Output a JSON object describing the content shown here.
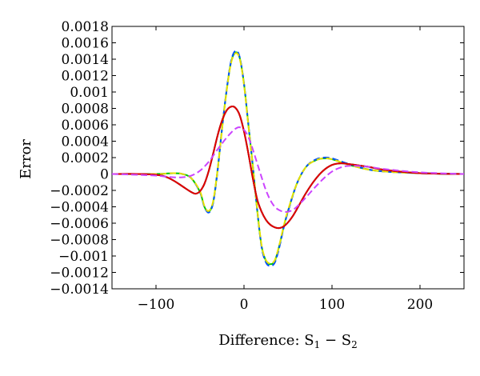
{
  "chart_data": {
    "type": "line",
    "xlabel": "Difference: S",
    "xlabel_sub1": "1",
    "xlabel_minus": " − S",
    "xlabel_sub2": "2",
    "ylabel": "Error",
    "xlim": [
      -150,
      250
    ],
    "ylim": [
      -0.0014,
      0.0018
    ],
    "x_ticks": [
      -100,
      0,
      100,
      200
    ],
    "x_tick_labels": [
      "−100",
      "0",
      "100",
      "200"
    ],
    "y_ticks": [
      -0.0014,
      -0.0012,
      -0.001,
      -0.0008,
      -0.0006,
      -0.0004,
      -0.0002,
      0,
      0.0002,
      0.0004,
      0.0006,
      0.0008,
      0.001,
      0.0012,
      0.0014,
      0.0016,
      0.0018
    ],
    "y_tick_labels": [
      "−0.0014",
      "−0.0012",
      "−0.001",
      "−0.0008",
      "−0.0006",
      "−0.0004",
      "−0.0002",
      "0",
      "0.0002",
      "0.0004",
      "0.0006",
      "0.0008",
      "0.001",
      "0.0012",
      "0.0014",
      "0.0016",
      "0.0018"
    ],
    "grid": false,
    "series": [
      {
        "color": "#00c800",
        "dash": "solid",
        "x": [
          -150,
          -100,
          -80,
          -70,
          -60,
          -50,
          -45,
          -40,
          -35,
          -30,
          -25,
          -20,
          -15,
          -10,
          -5,
          0,
          5,
          10,
          15,
          20,
          25,
          30,
          35,
          40,
          45,
          50,
          60,
          70,
          80,
          90,
          100,
          120,
          150,
          200,
          250
        ],
        "y": [
          0,
          0,
          1e-05,
          0,
          -5e-05,
          -0.00022,
          -0.0004,
          -0.00046,
          -0.00034,
          5e-05,
          0.00055,
          0.001,
          0.00135,
          0.00148,
          0.00142,
          0.0011,
          0.0006,
          0.0001,
          -0.00044,
          -0.00088,
          -0.00106,
          -0.0011,
          -0.00106,
          -0.00088,
          -0.00065,
          -0.00045,
          -0.00012,
          8e-05,
          0.00016,
          0.00019,
          0.00018,
          0.00011,
          4e-05,
          1e-05,
          0
        ]
      },
      {
        "color": "#0050ff",
        "dash": "dashed",
        "x": [
          -150,
          -100,
          -80,
          -70,
          -60,
          -50,
          -45,
          -40,
          -35,
          -30,
          -25,
          -20,
          -15,
          -10,
          -5,
          0,
          5,
          10,
          15,
          20,
          25,
          30,
          35,
          40,
          45,
          50,
          60,
          70,
          80,
          90,
          100,
          120,
          150,
          200,
          250
        ],
        "y": [
          0,
          0,
          1e-05,
          0,
          -5e-05,
          -0.00022,
          -0.0004,
          -0.00047,
          -0.00035,
          4e-05,
          0.00055,
          0.001,
          0.00136,
          0.0015,
          0.00143,
          0.0011,
          0.0006,
          0.0001,
          -0.00044,
          -0.00089,
          -0.00108,
          -0.00112,
          -0.00108,
          -0.0009,
          -0.00066,
          -0.00046,
          -0.00012,
          8e-05,
          0.00017,
          0.0002,
          0.00019,
          0.00012,
          4e-05,
          1e-05,
          0
        ]
      },
      {
        "color": "#e8e000",
        "dash": "dashed",
        "x": [
          -150,
          -100,
          -80,
          -70,
          -60,
          -50,
          -45,
          -40,
          -35,
          -30,
          -25,
          -20,
          -15,
          -10,
          -5,
          0,
          5,
          10,
          15,
          20,
          25,
          30,
          35,
          40,
          45,
          50,
          60,
          70,
          80,
          90,
          100,
          120,
          150,
          200,
          250
        ],
        "y": [
          0,
          0,
          1e-05,
          0,
          -5e-05,
          -0.00021,
          -0.00039,
          -0.00045,
          -0.00033,
          5e-05,
          0.00054,
          0.00099,
          0.00134,
          0.00147,
          0.00141,
          0.00109,
          0.00059,
          0.0001,
          -0.00043,
          -0.00087,
          -0.00105,
          -0.00109,
          -0.00105,
          -0.00087,
          -0.00064,
          -0.00044,
          -0.00012,
          8e-05,
          0.00016,
          0.00019,
          0.00018,
          0.00011,
          4e-05,
          1e-05,
          0
        ]
      },
      {
        "color": "#000000",
        "dash": "solid",
        "x": [
          -150,
          -120,
          -100,
          -90,
          -80,
          -70,
          -60,
          -55,
          -50,
          -45,
          -40,
          -35,
          -30,
          -25,
          -20,
          -15,
          -10,
          -5,
          0,
          5,
          10,
          15,
          20,
          25,
          30,
          35,
          40,
          45,
          50,
          55,
          60,
          70,
          80,
          90,
          100,
          110,
          120,
          140,
          160,
          200,
          250
        ],
        "y": [
          0,
          0,
          -1e-05,
          -3e-05,
          -8e-05,
          -0.00015,
          -0.00022,
          -0.00024,
          -0.00021,
          -0.00012,
          4e-05,
          0.00025,
          0.00047,
          0.00065,
          0.00077,
          0.00082,
          0.00081,
          0.00072,
          0.00052,
          0.00025,
          -5e-05,
          -0.00031,
          -0.00046,
          -0.00056,
          -0.00062,
          -0.00065,
          -0.00066,
          -0.00064,
          -0.00059,
          -0.00052,
          -0.00043,
          -0.00024,
          -8e-05,
          4e-05,
          0.00011,
          0.00013,
          0.00012,
          9e-05,
          5e-05,
          1e-05,
          0
        ]
      },
      {
        "color": "#e00000",
        "dash": "solid",
        "x": [
          -150,
          -120,
          -100,
          -90,
          -80,
          -70,
          -60,
          -55,
          -50,
          -45,
          -40,
          -35,
          -30,
          -25,
          -20,
          -15,
          -10,
          -5,
          0,
          5,
          10,
          15,
          20,
          25,
          30,
          35,
          40,
          45,
          50,
          55,
          60,
          70,
          80,
          90,
          100,
          110,
          120,
          140,
          160,
          200,
          250
        ],
        "y": [
          0,
          0,
          -1e-05,
          -3e-05,
          -8e-05,
          -0.00015,
          -0.00022,
          -0.00024,
          -0.00021,
          -0.00012,
          4e-05,
          0.00025,
          0.00047,
          0.00065,
          0.00077,
          0.00082,
          0.00081,
          0.00072,
          0.00052,
          0.00025,
          -5e-05,
          -0.00031,
          -0.00046,
          -0.00056,
          -0.00062,
          -0.00065,
          -0.00066,
          -0.00064,
          -0.00059,
          -0.00052,
          -0.00043,
          -0.00024,
          -8e-05,
          4e-05,
          0.00011,
          0.00013,
          0.00012,
          9e-05,
          5e-05,
          1e-05,
          0
        ]
      },
      {
        "color": "#cc44ff",
        "dash": "dashed",
        "x": [
          -150,
          -120,
          -100,
          -90,
          -80,
          -70,
          -60,
          -50,
          -40,
          -30,
          -20,
          -15,
          -10,
          -5,
          0,
          5,
          10,
          15,
          20,
          25,
          30,
          35,
          40,
          45,
          50,
          55,
          60,
          70,
          80,
          90,
          100,
          110,
          120,
          140,
          160,
          200,
          250
        ],
        "y": [
          0,
          -1e-05,
          -2e-05,
          -3e-05,
          -4e-05,
          -4e-05,
          -2e-05,
          4e-05,
          0.00015,
          0.0003,
          0.00044,
          0.0005,
          0.00055,
          0.00057,
          0.00054,
          0.00045,
          0.0003,
          0.00013,
          -4e-05,
          -0.0002,
          -0.00032,
          -0.0004,
          -0.00044,
          -0.00046,
          -0.00046,
          -0.00044,
          -0.0004,
          -0.00029,
          -0.00017,
          -6e-05,
          3e-05,
          8e-05,
          0.0001,
          9e-05,
          6e-05,
          2e-05,
          0
        ]
      }
    ]
  }
}
